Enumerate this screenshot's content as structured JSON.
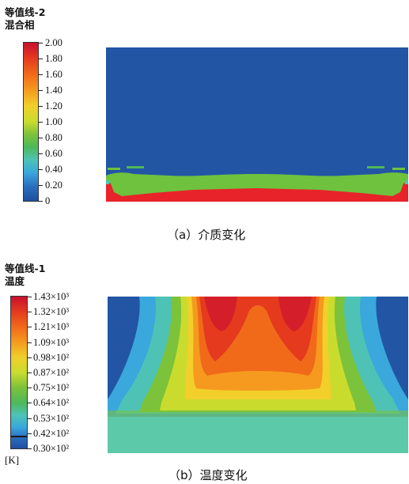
{
  "panel_a": {
    "title_line1": "等值线-2",
    "title_line2": "混合相",
    "legend_ticks": [
      "2.00",
      "1.80",
      "1.60",
      "1.40",
      "1.20",
      "1.00",
      "0.80",
      "0.60",
      "0.40",
      "0.20",
      "0"
    ],
    "caption": "（a）介质变化"
  },
  "panel_b": {
    "title_line1": "等值线-1",
    "title_line2": "温度",
    "legend_ticks": [
      "1.43×10³",
      "1.32×10³",
      "1.21×10³",
      "1.09×10³",
      "0.98×10²",
      "0.87×10²",
      "0.75×10²",
      "0.64×10²",
      "0.53×10²",
      "0.42×10²",
      "0.30×10²"
    ],
    "unit": "[K]",
    "caption": "（b）温度变化"
  },
  "colors": {
    "scale": [
      "#c8102e",
      "#e53a1e",
      "#f06a1a",
      "#f59a1e",
      "#f2cf2a",
      "#c9dc2e",
      "#7cc23a",
      "#4eb85a",
      "#4ec3b5",
      "#3aa8dc",
      "#2a6dbf",
      "#1f4f9f"
    ],
    "phase_background": "#2255a4",
    "phase_green": "#6ec23e",
    "phase_red": "#e8232a"
  }
}
